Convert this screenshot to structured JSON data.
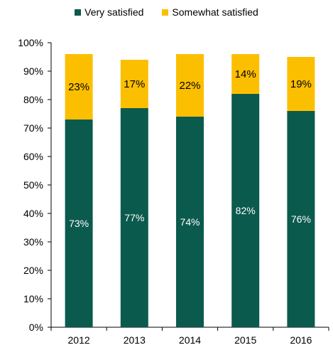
{
  "chart_data": {
    "type": "bar",
    "stacked": true,
    "categories": [
      "2012",
      "2013",
      "2014",
      "2015",
      "2016"
    ],
    "series": [
      {
        "name": "Very satisfied",
        "values": [
          73,
          77,
          74,
          82,
          76
        ],
        "labels": [
          "73%",
          "77%",
          "74%",
          "82%",
          "76%"
        ],
        "color": "#0b5a4e"
      },
      {
        "name": "Somewhat satisfied",
        "values": [
          23,
          17,
          22,
          14,
          19
        ],
        "labels": [
          "23%",
          "17%",
          "22%",
          "14%",
          "19%"
        ],
        "color": "#fcbf00"
      }
    ],
    "yticks": [
      "0%",
      "10%",
      "20%",
      "30%",
      "40%",
      "50%",
      "60%",
      "70%",
      "80%",
      "90%",
      "100%"
    ],
    "ylim": [
      0,
      100
    ],
    "legend_position": "top",
    "grid": false
  }
}
